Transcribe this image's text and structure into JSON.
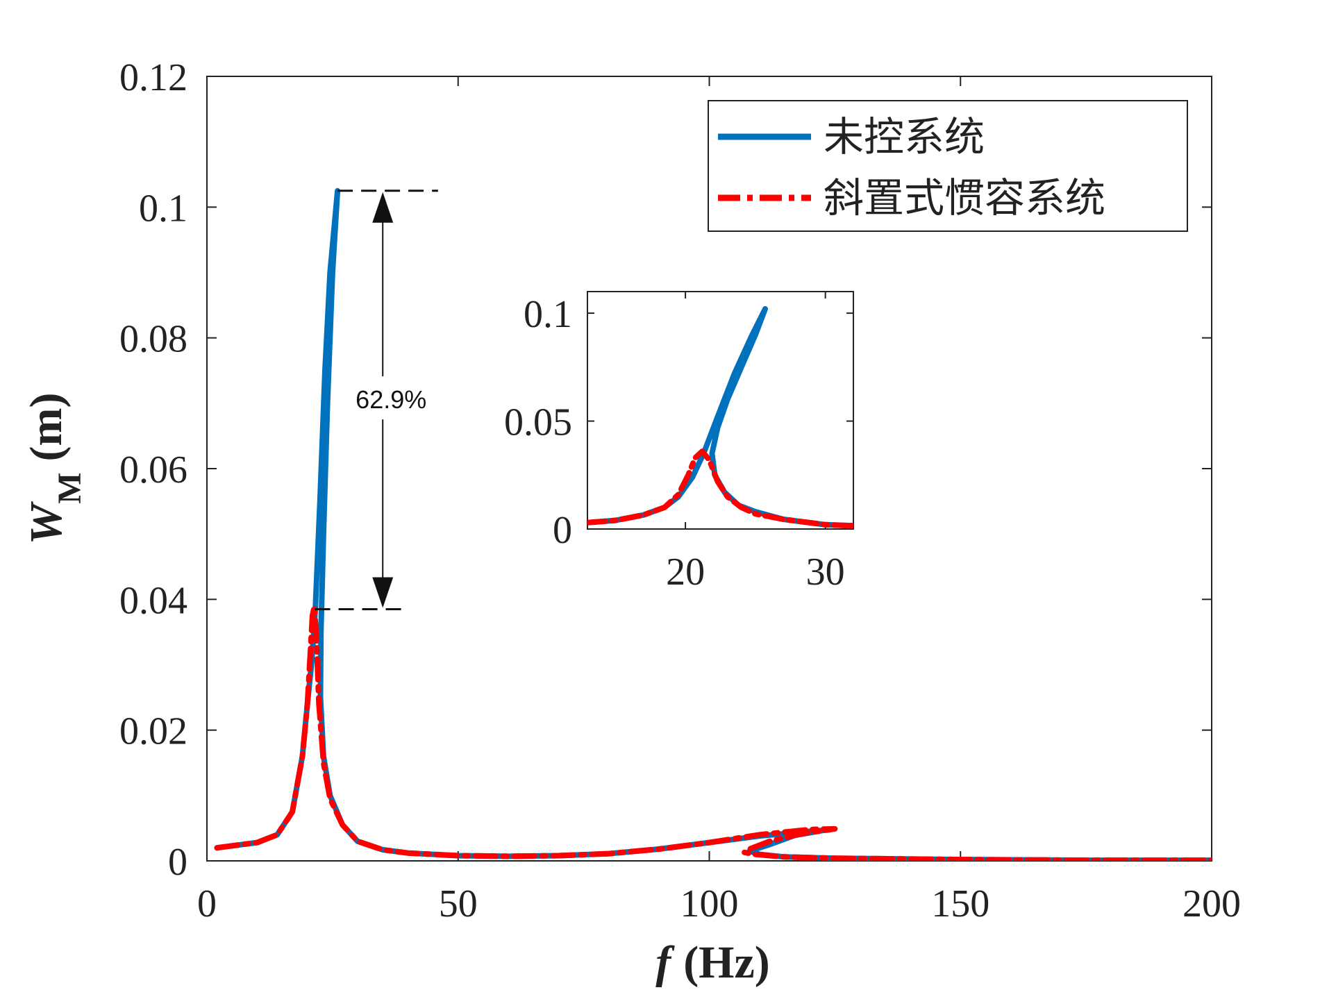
{
  "chart_data": [
    {
      "type": "line",
      "title": "",
      "xlabel": "f",
      "xlabel_unit": "(Hz)",
      "ylabel": "W",
      "ylabel_sub": "M",
      "ylabel_unit": "(m)",
      "xlim": [
        0,
        200
      ],
      "ylim": [
        0,
        0.12
      ],
      "x_ticks": [
        0,
        50,
        100,
        150,
        200
      ],
      "x_tick_labels": [
        "0",
        "50",
        "100",
        "150",
        "200"
      ],
      "y_ticks": [
        0,
        0.02,
        0.04,
        0.06,
        0.08,
        0.1,
        0.12
      ],
      "y_tick_labels": [
        "0",
        "0.02",
        "0.04",
        "0.06",
        "0.08",
        "0.1",
        "0.12"
      ],
      "legend_position": "top-right",
      "series": [
        {
          "name": "未控系统",
          "color": "#0072BD",
          "style": "solid",
          "points": [
            [
              2,
              0.002
            ],
            [
              5,
              0.0023
            ],
            [
              10,
              0.0028
            ],
            [
              14,
              0.004
            ],
            [
              17,
              0.0075
            ],
            [
              19,
              0.016
            ],
            [
              20,
              0.024
            ],
            [
              20.8,
              0.03
            ],
            [
              21.3,
              0.035
            ],
            [
              21.6,
              0.039
            ],
            [
              22.5,
              0.055
            ],
            [
              23.5,
              0.075
            ],
            [
              24.5,
              0.09
            ],
            [
              26,
              0.1025
            ],
            [
              25,
              0.09
            ],
            [
              24,
              0.07
            ],
            [
              23.2,
              0.05
            ],
            [
              22.7,
              0.035
            ],
            [
              22.6,
              0.025
            ],
            [
              23.2,
              0.016
            ],
            [
              24.5,
              0.01
            ],
            [
              27,
              0.0055
            ],
            [
              30,
              0.003
            ],
            [
              35,
              0.0017
            ],
            [
              40,
              0.0012
            ],
            [
              50,
              0.0008
            ],
            [
              60,
              0.0007
            ],
            [
              70,
              0.0008
            ],
            [
              80,
              0.0011
            ],
            [
              90,
              0.0018
            ],
            [
              100,
              0.0028
            ],
            [
              110,
              0.0038
            ],
            [
              120,
              0.0045
            ],
            [
              123,
              0.0047
            ],
            [
              117,
              0.0039
            ],
            [
              112,
              0.0025
            ],
            [
              108,
              0.0015
            ],
            [
              110,
              0.001
            ],
            [
              115,
              0.0006
            ],
            [
              125,
              0.0004
            ],
            [
              150,
              0.0002
            ],
            [
              175,
              0.0001
            ],
            [
              200,
              0.0001
            ]
          ]
        },
        {
          "name": "斜置式惯容系统",
          "color": "#FF0000",
          "style": "dash-dot",
          "points": [
            [
              2,
              0.002
            ],
            [
              5,
              0.0023
            ],
            [
              10,
              0.0028
            ],
            [
              14,
              0.004
            ],
            [
              17,
              0.0075
            ],
            [
              19,
              0.016
            ],
            [
              20,
              0.024
            ],
            [
              20.6,
              0.032
            ],
            [
              21,
              0.0375
            ],
            [
              21.4,
              0.039
            ],
            [
              21.8,
              0.034
            ],
            [
              22.3,
              0.024
            ],
            [
              23.2,
              0.015
            ],
            [
              24.5,
              0.0095
            ],
            [
              27,
              0.0055
            ],
            [
              30,
              0.003
            ],
            [
              35,
              0.0017
            ],
            [
              40,
              0.0012
            ],
            [
              50,
              0.0008
            ],
            [
              60,
              0.0007
            ],
            [
              70,
              0.0008
            ],
            [
              80,
              0.0011
            ],
            [
              90,
              0.0018
            ],
            [
              100,
              0.0028
            ],
            [
              110,
              0.004
            ],
            [
              120,
              0.0048
            ],
            [
              125,
              0.0049
            ],
            [
              118,
              0.0041
            ],
            [
              112,
              0.003
            ],
            [
              108,
              0.0018
            ],
            [
              107,
              0.0013
            ],
            [
              109,
              0.001
            ],
            [
              115,
              0.0006
            ],
            [
              125,
              0.0004
            ],
            [
              150,
              0.0002
            ],
            [
              175,
              0.0001
            ],
            [
              200,
              0.0001
            ]
          ]
        }
      ],
      "annotations": [
        {
          "text": "62.9%",
          "type": "double-arrow",
          "x": 35,
          "y_from": 0.0385,
          "y_to": 0.1025
        },
        {
          "type": "dashed-level",
          "x_from": 26,
          "x_to": 46,
          "y": 0.1025
        },
        {
          "type": "dashed-level",
          "x_from": 21.5,
          "x_to": 40,
          "y": 0.0385
        }
      ]
    },
    {
      "type": "line",
      "role": "inset",
      "title": "",
      "xlim": [
        13,
        32
      ],
      "ylim": [
        0,
        0.11
      ],
      "x_ticks": [
        20,
        30
      ],
      "x_tick_labels": [
        "20",
        "30"
      ],
      "y_ticks": [
        0,
        0.05,
        0.1
      ],
      "y_tick_labels": [
        "0",
        "0.05",
        "0.1"
      ],
      "series": [
        {
          "name": "未控系统",
          "color": "#0072BD",
          "style": "solid",
          "points": [
            [
              13,
              0.003
            ],
            [
              15,
              0.004
            ],
            [
              17,
              0.0065
            ],
            [
              18.5,
              0.01
            ],
            [
              19.5,
              0.015
            ],
            [
              20.5,
              0.024
            ],
            [
              21.3,
              0.035
            ],
            [
              22.3,
              0.052
            ],
            [
              23.5,
              0.072
            ],
            [
              24.7,
              0.089
            ],
            [
              25.7,
              0.102
            ],
            [
              25,
              0.09
            ],
            [
              24,
              0.075
            ],
            [
              23,
              0.06
            ],
            [
              22.3,
              0.047
            ],
            [
              21.9,
              0.035
            ],
            [
              22.1,
              0.025
            ],
            [
              22.8,
              0.017
            ],
            [
              23.8,
              0.011
            ],
            [
              25,
              0.008
            ],
            [
              27,
              0.0045
            ],
            [
              30,
              0.002
            ],
            [
              32,
              0.0015
            ]
          ]
        },
        {
          "name": "斜置式惯容系统",
          "color": "#FF0000",
          "style": "dash-dot",
          "points": [
            [
              13,
              0.003
            ],
            [
              15,
              0.004
            ],
            [
              17,
              0.0065
            ],
            [
              18.5,
              0.01
            ],
            [
              19.5,
              0.016
            ],
            [
              20.2,
              0.025
            ],
            [
              20.7,
              0.033
            ],
            [
              21.2,
              0.036
            ],
            [
              21.7,
              0.032
            ],
            [
              22.3,
              0.022
            ],
            [
              23,
              0.015
            ],
            [
              24,
              0.01
            ],
            [
              25,
              0.007
            ],
            [
              27,
              0.0045
            ],
            [
              30,
              0.002
            ],
            [
              32,
              0.0015
            ]
          ]
        }
      ]
    }
  ]
}
